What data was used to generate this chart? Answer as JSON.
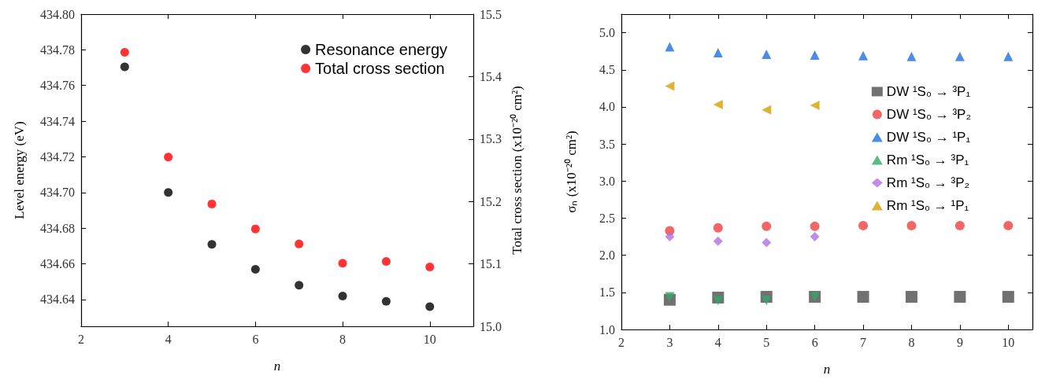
{
  "chart_data": [
    {
      "type": "scatter",
      "xlabel": "n",
      "ylabel": "Level energy (eV)",
      "y2label": "Total cross section (x10⁻²⁰ cm²)",
      "x": [
        3,
        4,
        5,
        6,
        7,
        8,
        9,
        10
      ],
      "series": [
        {
          "name": "Resonance energy",
          "color": "#000000",
          "values": [
            434.7705,
            434.7,
            434.671,
            434.657,
            434.648,
            434.642,
            434.639,
            434.636
          ]
        },
        {
          "name": "Total cross section",
          "color": "#ff0000",
          "axis": "y2",
          "values": [
            15.439,
            15.271,
            15.196,
            15.156,
            15.132,
            15.101,
            15.104,
            15.095
          ]
        }
      ],
      "xlim": [
        2,
        11
      ],
      "xticks": [
        2,
        4,
        6,
        8,
        10
      ],
      "ylim": [
        434.625,
        434.8
      ],
      "yticks": [
        434.64,
        434.66,
        434.68,
        {
          "value": 434.7,
          "label": "434.70"
        },
        434.72,
        434.74,
        434.76,
        434.78,
        {
          "value": 434.8,
          "label": "434.80"
        }
      ],
      "y2lim": [
        15.0,
        15.5
      ],
      "y2ticks": [
        {
          "value": 15,
          "label": "15.0"
        },
        15.1,
        15.2,
        15.3,
        15.4,
        15.5
      ],
      "marker": "circle",
      "grid": false,
      "legend": "top right"
    },
    {
      "type": "scatter",
      "xlabel": "n",
      "ylabel": "σₙ (x10⁻²⁰ cm²)",
      "x": [
        3,
        4,
        5,
        6,
        7,
        8,
        9,
        10
      ],
      "series": [
        {
          "name": "DW ¹S₀ → ³P₁",
          "color": "#4d4d4d",
          "marker": "square",
          "values": [
            1.4,
            1.43,
            1.44,
            1.44,
            1.44,
            1.44,
            1.44,
            1.44
          ]
        },
        {
          "name": "DW ¹S₀ → ³P₂",
          "color": "#f04040",
          "marker": "circle",
          "values": [
            2.33,
            2.37,
            2.39,
            2.39,
            2.4,
            2.4,
            2.4,
            2.4
          ]
        },
        {
          "name": "DW ¹S₀ → ¹P₁",
          "color": "#1f6fe0",
          "marker": "triangle",
          "values": [
            4.81,
            4.73,
            4.71,
            4.7,
            4.69,
            4.68,
            4.68,
            4.68
          ]
        },
        {
          "name": "Rm ¹S₀ → ³P₁",
          "color": "#2eaa6a",
          "marker": "triangle-down",
          "values": [
            1.44,
            1.39,
            1.39,
            1.44,
            null,
            null,
            null,
            null
          ]
        },
        {
          "name": "Rm ¹S₀ → ³P₂",
          "color": "#b070e0",
          "marker": "diamond",
          "values": [
            2.25,
            2.19,
            2.17,
            2.25,
            null,
            null,
            null,
            null
          ]
        },
        {
          "name": "Rm ¹S₀ → ¹P₁",
          "color": "#d4a000",
          "marker": "triangle-left",
          "values": [
            4.28,
            4.03,
            3.96,
            4.02,
            null,
            null,
            null,
            null
          ]
        }
      ],
      "xlim": [
        2,
        10.5
      ],
      "xticks": [
        2,
        3,
        4,
        5,
        6,
        7,
        8,
        9,
        10
      ],
      "ylim": [
        1.0,
        5.25
      ],
      "yticks": [
        {
          "value": 1,
          "label": "1.0"
        },
        1.5,
        {
          "value": 2,
          "label": "2.0"
        },
        2.5,
        {
          "value": 3,
          "label": "3.0"
        },
        3.5,
        {
          "value": 4,
          "label": "4.0"
        },
        4.5,
        {
          "value": 5,
          "label": "5.0"
        }
      ],
      "grid": false,
      "legend": "right"
    }
  ]
}
